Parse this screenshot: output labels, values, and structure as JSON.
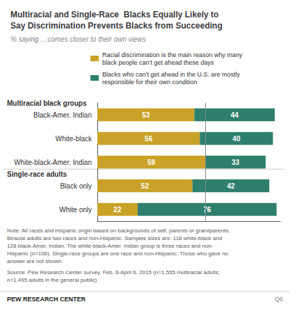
{
  "chart_data": {
    "type": "bar",
    "orientation": "horizontal",
    "stacked": true,
    "data_labels": true,
    "tick_labels": "y",
    "grid": false,
    "legend": "top",
    "title": "Multiracial and Single-Race  Blacks Equally Likely to\nSay Discrimination Prevents Blacks from Succeeding",
    "subtitle": "% saying …comes closer to their own views",
    "categories": [
      "Black-Amer. Indian",
      "White-black",
      "White-black-Amer. Indian",
      "Black only",
      "White only"
    ],
    "series": [
      {
        "name": "Racial discrimination is the main reason why many\nblack people can’t get ahead these days",
        "color": "#C9A227",
        "values": [
          53,
          56,
          59,
          52,
          22
        ]
      },
      {
        "name": "Blacks who can’t get ahead in the U.S. are mostly\nresponsible for their own condition",
        "color": "#2E7F6E",
        "values": [
          44,
          40,
          33,
          42,
          76
        ]
      }
    ],
    "xlim": [
      0,
      100
    ],
    "annotations": [
      {
        "text": "Multiracial black groups",
        "category": "Black-Amer. Indian"
      },
      {
        "text": "Single-race adults",
        "category": "Black only"
      },
      {
        "x": 59,
        "line_style": "solid"
      }
    ],
    "note": "Note: All races and Hispanic origin based on backgrounds of self, parents or grandparents.\nBiracial adults are two races and non-Hispanic. Samples sizes are: 118 white-black and\n128 black-Amer. Indian. The white-black-Amer. Indian group is three races and non-\nHispanic (n=106). Single-race groups are one race and non-Hispanic. Those who gave no\nanswer are not shown.",
    "source": "Source: Pew Research Center survey, Feb. 6-April 6, 2015 (n=1,555 multiracial adults;\nn=1,495 adults in the general public)",
    "footer": "PEW RESEARCH CENTER",
    "footer_right": "Q6"
  }
}
